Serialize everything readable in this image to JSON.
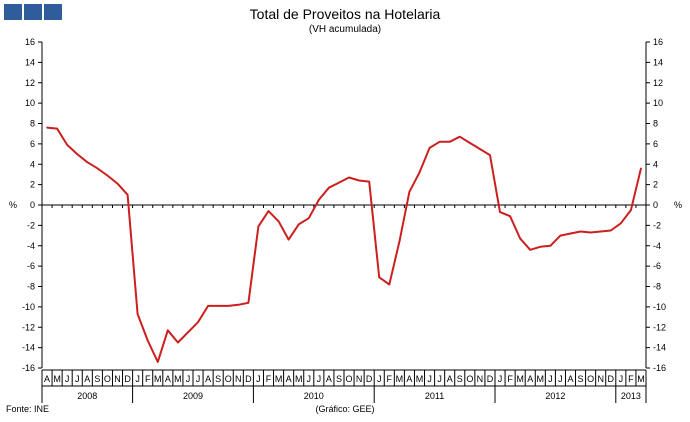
{
  "header": {
    "logo_color": "#2f5d9c"
  },
  "chart_data": {
    "type": "line",
    "title": "Total de Proveitos na Hotelaria",
    "subtitle": "(VH acumulada)",
    "ylabel_left": "%",
    "ylabel_right": "%",
    "ylim": [
      -16,
      16
    ],
    "yticks": [
      16,
      14,
      12,
      10,
      8,
      6,
      4,
      2,
      0,
      -2,
      -4,
      -6,
      -8,
      -10,
      -12,
      -14,
      -16
    ],
    "grid": false,
    "x": [
      "A",
      "M",
      "J",
      "J",
      "A",
      "S",
      "O",
      "N",
      "D",
      "J",
      "F",
      "M",
      "A",
      "M",
      "J",
      "J",
      "A",
      "S",
      "O",
      "N",
      "D",
      "J",
      "F",
      "M",
      "A",
      "M",
      "J",
      "J",
      "A",
      "S",
      "O",
      "N",
      "D",
      "J",
      "F",
      "M",
      "A",
      "M",
      "J",
      "J",
      "A",
      "S",
      "O",
      "N",
      "D",
      "J",
      "F",
      "M",
      "A",
      "M",
      "J",
      "J",
      "A",
      "S",
      "O",
      "N",
      "D",
      "J",
      "F",
      "M"
    ],
    "years": [
      {
        "label": "2008",
        "start": 0,
        "end": 9
      },
      {
        "label": "2009",
        "start": 9,
        "end": 21
      },
      {
        "label": "2010",
        "start": 21,
        "end": 33
      },
      {
        "label": "2011",
        "start": 33,
        "end": 45
      },
      {
        "label": "2012",
        "start": 45,
        "end": 57
      },
      {
        "label": "2013",
        "start": 57,
        "end": 60
      }
    ],
    "series": [
      {
        "color": "#cc1f1f",
        "values": [
          7.6,
          7.5,
          5.9,
          5.0,
          4.2,
          3.6,
          2.9,
          2.1,
          1.0,
          -10.7,
          -13.3,
          -15.4,
          -12.3,
          -13.5,
          -12.5,
          -11.5,
          -9.9,
          -9.9,
          -9.9,
          -9.8,
          -9.6,
          -2.1,
          -0.6,
          -1.6,
          -3.4,
          -1.9,
          -1.3,
          0.5,
          1.7,
          2.2,
          2.7,
          2.4,
          2.3,
          -7.1,
          -7.8,
          -3.6,
          1.3,
          3.2,
          5.6,
          6.2,
          6.2,
          6.7,
          6.1,
          5.5,
          4.9,
          -0.7,
          -1.1,
          -3.3,
          -4.4,
          -4.1,
          -4.0,
          -3.0,
          -2.8,
          -2.6,
          -2.7,
          -2.6,
          -2.5,
          -1.8,
          -0.5,
          3.6
        ]
      }
    ]
  },
  "footer": {
    "source": "Fonte: INE",
    "credit": "(Gráfico: GEE)"
  }
}
